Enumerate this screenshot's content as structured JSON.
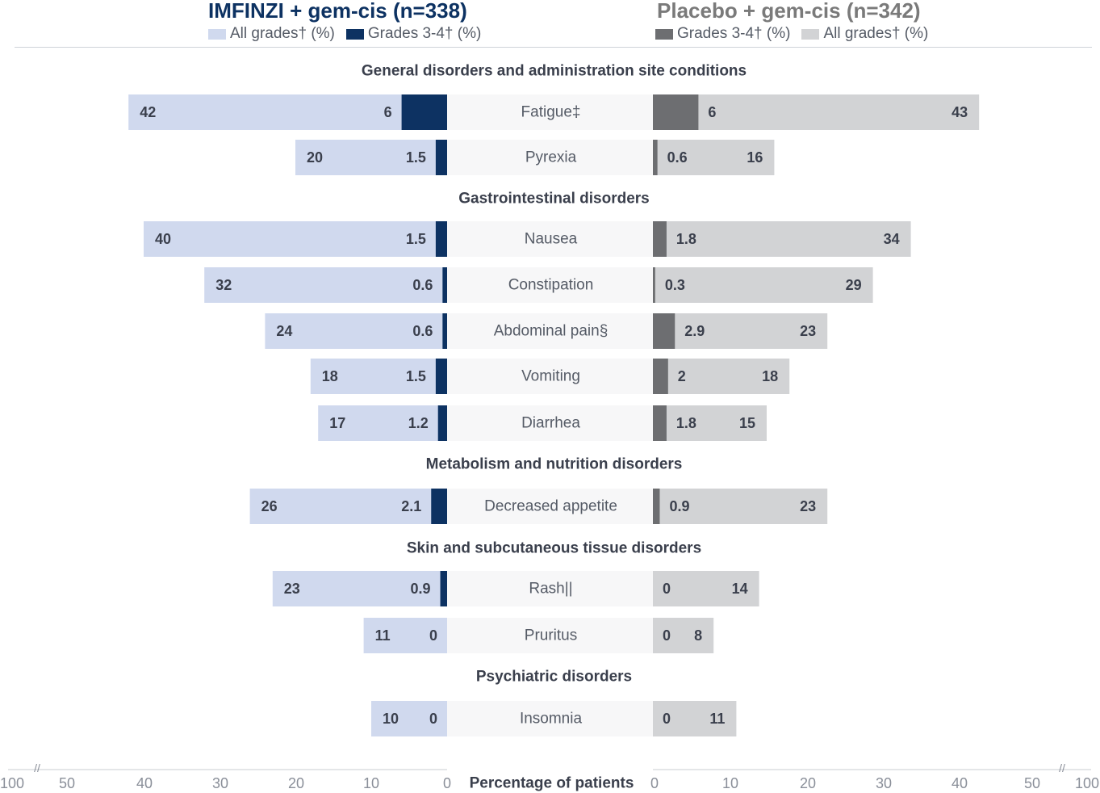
{
  "header": {
    "left_title": "IMFINZI + gem-cis (n=338)",
    "right_title": "Placebo + gem-cis (n=342)"
  },
  "legend": {
    "left": [
      {
        "label": "All grades† (%)",
        "color": "#d0d9ee"
      },
      {
        "label": "Grades 3-4† (%)",
        "color": "#0d3262"
      }
    ],
    "right": [
      {
        "label": "Grades 3-4† (%)",
        "color": "#6d6e71"
      },
      {
        "label": "All grades† (%)",
        "color": "#d2d3d5"
      }
    ]
  },
  "chart_data": {
    "type": "bar",
    "orientation": "horizontal-diverging",
    "xlabel": "Percentage of patients",
    "xlim": [
      0,
      50
    ],
    "axis_break": "//",
    "x_ticks_left": [
      "100",
      "50",
      "40",
      "30",
      "20",
      "10",
      "0"
    ],
    "x_ticks_right": [
      "0",
      "10",
      "20",
      "30",
      "40",
      "50",
      "100"
    ],
    "colors": {
      "left_all": "#d0d9ee",
      "left_g34": "#0d3262",
      "right_all": "#d2d3d5",
      "right_g34": "#6d6e71",
      "label_band": "#f7f7f8"
    },
    "series": [
      {
        "name": "IMFINZI + gem-cis All grades† (%)"
      },
      {
        "name": "IMFINZI + gem-cis Grades 3-4† (%)"
      },
      {
        "name": "Placebo + gem-cis Grades 3-4† (%)"
      },
      {
        "name": "Placebo + gem-cis All grades† (%)"
      }
    ],
    "groups": [
      {
        "name": "General disorders and administration site conditions",
        "rows": [
          {
            "label": "Fatigue‡",
            "imfinzi_all": 42,
            "imfinzi_g34": 6,
            "placebo_g34": 6,
            "placebo_all": 43
          },
          {
            "label": "Pyrexia",
            "imfinzi_all": 20,
            "imfinzi_g34": 1.5,
            "placebo_g34": 0.6,
            "placebo_all": 16
          }
        ]
      },
      {
        "name": "Gastrointestinal disorders",
        "rows": [
          {
            "label": "Nausea",
            "imfinzi_all": 40,
            "imfinzi_g34": 1.5,
            "placebo_g34": 1.8,
            "placebo_all": 34
          },
          {
            "label": "Constipation",
            "imfinzi_all": 32,
            "imfinzi_g34": 0.6,
            "placebo_g34": 0.3,
            "placebo_all": 29
          },
          {
            "label": "Abdominal pain§",
            "imfinzi_all": 24,
            "imfinzi_g34": 0.6,
            "placebo_g34": 2.9,
            "placebo_all": 23
          },
          {
            "label": "Vomiting",
            "imfinzi_all": 18,
            "imfinzi_g34": 1.5,
            "placebo_g34": 2.0,
            "placebo_all": 18
          },
          {
            "label": "Diarrhea",
            "imfinzi_all": 17,
            "imfinzi_g34": 1.2,
            "placebo_g34": 1.8,
            "placebo_all": 15
          }
        ]
      },
      {
        "name": "Metabolism and nutrition disorders",
        "rows": [
          {
            "label": "Decreased appetite",
            "imfinzi_all": 26,
            "imfinzi_g34": 2.1,
            "placebo_g34": 0.9,
            "placebo_all": 23
          }
        ]
      },
      {
        "name": "Skin and subcutaneous tissue disorders",
        "rows": [
          {
            "label": "Rash||",
            "imfinzi_all": 23,
            "imfinzi_g34": 0.9,
            "placebo_g34": 0,
            "placebo_all": 14
          },
          {
            "label": "Pruritus",
            "imfinzi_all": 11,
            "imfinzi_g34": 0,
            "placebo_g34": 0,
            "placebo_all": 8
          }
        ]
      },
      {
        "name": "Psychiatric disorders",
        "rows": [
          {
            "label": "Insomnia",
            "imfinzi_all": 10,
            "imfinzi_g34": 0,
            "placebo_g34": 0,
            "placebo_all": 11
          }
        ]
      }
    ]
  }
}
